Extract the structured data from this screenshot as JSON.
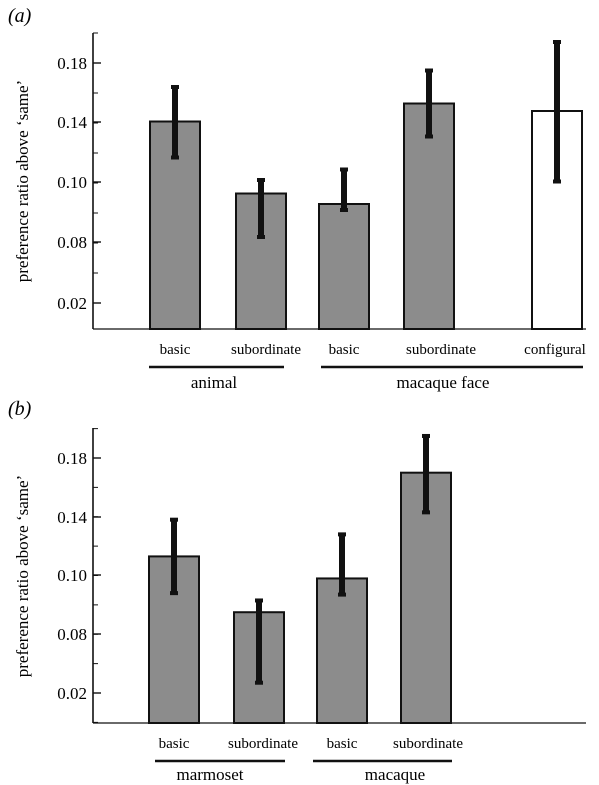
{
  "colors": {
    "bar_fill": "#8c8c8c",
    "bar_open_fill": "#ffffff",
    "stroke": "#111111"
  },
  "chart_data": [
    {
      "panel_label": "(a)",
      "type": "bar",
      "ylabel": "preference ratio above ‘same’",
      "yticks": [
        "0.02",
        "0.08",
        "0.10",
        "0.14",
        "0.18"
      ],
      "ylim": [
        0.0,
        0.2
      ],
      "minor_tick_step": 0.02,
      "categories": [
        "basic",
        "subordinate",
        "basic",
        "subordinate",
        "configural"
      ],
      "values": [
        0.141,
        0.093,
        0.086,
        0.153,
        0.148
      ],
      "error_low": [
        0.117,
        0.064,
        0.082,
        0.131,
        0.101
      ],
      "error_high": [
        0.164,
        0.102,
        0.109,
        0.175,
        0.194
      ],
      "open_bars": [
        false,
        false,
        false,
        false,
        true
      ],
      "groups": [
        {
          "label": "animal",
          "from": 0,
          "to": 1
        },
        {
          "label": "macaque face",
          "from": 2,
          "to": 4
        }
      ]
    },
    {
      "panel_label": "(b)",
      "type": "bar",
      "ylabel": "preference ratio above ‘same’",
      "yticks": [
        "0.02",
        "0.08",
        "0.10",
        "0.14",
        "0.18"
      ],
      "ylim": [
        0.0,
        0.2
      ],
      "minor_tick_step": 0.02,
      "categories": [
        "basic",
        "subordinate",
        "basic",
        "subordinate"
      ],
      "values": [
        0.113,
        0.075,
        0.098,
        0.17
      ],
      "error_low": [
        0.088,
        0.027,
        0.087,
        0.143
      ],
      "error_high": [
        0.138,
        0.083,
        0.128,
        0.195
      ],
      "open_bars": [
        false,
        false,
        false,
        false
      ],
      "groups": [
        {
          "label": "marmoset",
          "from": 0,
          "to": 1
        },
        {
          "label": "macaque",
          "from": 2,
          "to": 3
        }
      ]
    }
  ]
}
